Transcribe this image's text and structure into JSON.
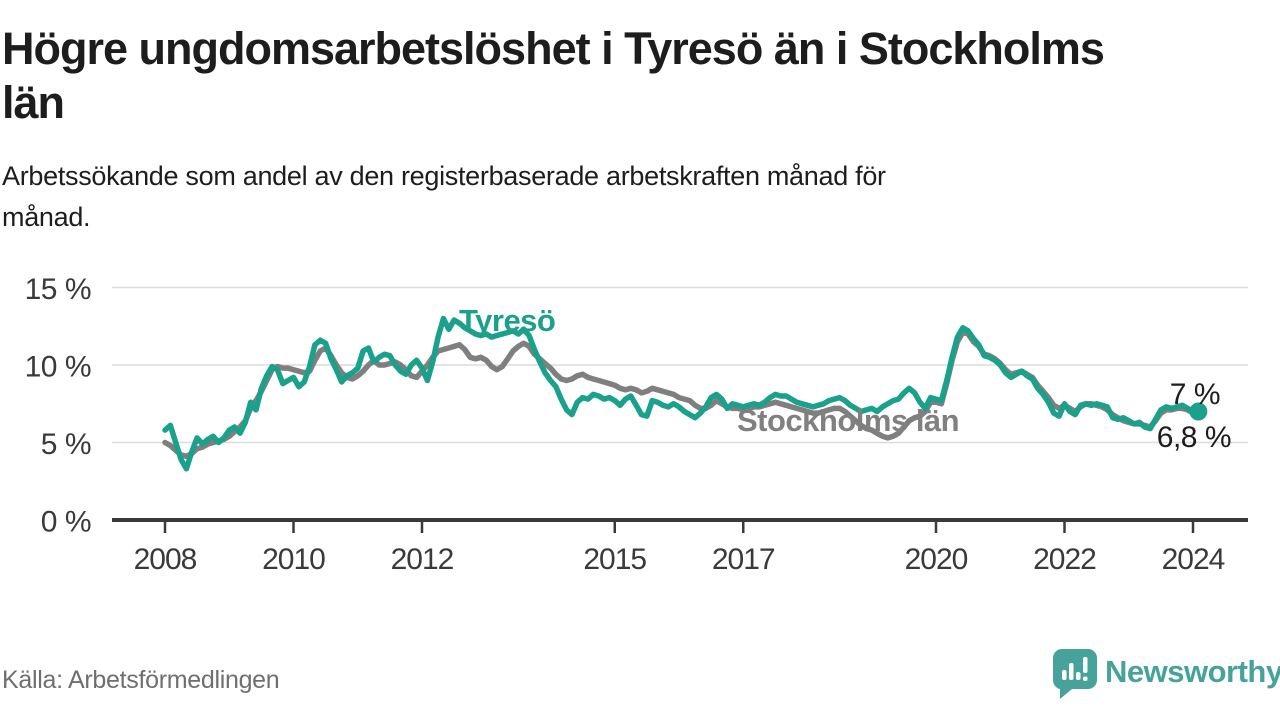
{
  "header": {
    "title_line1": "Högre ungdomsarbetslöshet i Tyresö än i Stockholms",
    "title_line2": "län",
    "subtitle_line1": "Arbetssökande som andel av den registerbaserade arbetskraften månad för",
    "subtitle_line2": "månad."
  },
  "footer": {
    "source": "Källa: Arbetsförmedlingen",
    "brand": "Newsworthy",
    "brand_color": "#48a29c",
    "logo_icon": "bar-chart-speech-bubble-icon"
  },
  "chart_data": {
    "type": "line",
    "title": "Högre ungdomsarbetslöshet i Tyresö än i Stockholms län",
    "subtitle": "Arbetssökande som andel av den registerbaserade arbetskraften månad för månad.",
    "unit": "%",
    "x_start": 2008.0,
    "points_per_year": 12,
    "x_ticks": {
      "values": [
        2008,
        2010,
        2012,
        2015,
        2017,
        2020,
        2022,
        2024
      ],
      "labels": [
        "2008",
        "2010",
        "2012",
        "2015",
        "2017",
        "2020",
        "2022",
        "2024"
      ]
    },
    "y_ticks": {
      "values": [
        0,
        5,
        10,
        15
      ],
      "labels": [
        "0 %",
        "5 %",
        "10 %",
        "15 %"
      ]
    },
    "ylim": [
      0,
      15.5
    ],
    "grid": "horizontal",
    "legend_position": "inline-labels",
    "axis_color": "#3a3a3a",
    "grid_color": "#dcdcdc",
    "series": [
      {
        "name": "Stockholms län",
        "color": "#7f7f7f",
        "label_color": "#808080",
        "end_label": "6,8 %",
        "end_dot": false,
        "values": [
          5.0,
          4.8,
          4.5,
          4.2,
          4.1,
          4.3,
          4.6,
          4.7,
          4.9,
          5.0,
          5.1,
          5.2,
          5.4,
          5.7,
          6.0,
          6.4,
          7.2,
          7.7,
          8.3,
          9.0,
          9.7,
          9.9,
          9.8,
          9.8,
          9.7,
          9.6,
          9.5,
          9.6,
          10.3,
          10.9,
          11.1,
          10.6,
          10.0,
          9.5,
          9.2,
          9.1,
          9.3,
          9.6,
          10.0,
          10.3,
          10.0,
          10.0,
          10.1,
          10.2,
          10.0,
          9.7,
          9.3,
          9.2,
          9.6,
          10.0,
          10.5,
          10.9,
          11.0,
          11.1,
          11.2,
          11.3,
          11.0,
          10.5,
          10.4,
          10.5,
          10.3,
          9.9,
          9.7,
          9.9,
          10.4,
          10.9,
          11.2,
          11.4,
          11.2,
          10.7,
          10.4,
          10.1,
          9.8,
          9.4,
          9.1,
          9.0,
          9.1,
          9.3,
          9.4,
          9.2,
          9.1,
          9.0,
          8.9,
          8.8,
          8.7,
          8.5,
          8.4,
          8.5,
          8.4,
          8.2,
          8.3,
          8.5,
          8.4,
          8.3,
          8.2,
          8.1,
          7.9,
          7.8,
          7.7,
          7.4,
          7.2,
          7.2,
          7.4,
          7.7,
          7.5,
          7.3,
          7.2,
          7.2,
          7.1,
          7.2,
          7.3,
          7.3,
          7.4,
          7.5,
          7.6,
          7.5,
          7.4,
          7.3,
          7.2,
          7.1,
          7.0,
          6.9,
          6.9,
          7.0,
          7.1,
          7.2,
          7.2,
          7.0,
          6.7,
          6.4,
          6.1,
          5.9,
          5.8,
          5.6,
          5.4,
          5.3,
          5.4,
          5.6,
          6.0,
          6.4,
          6.6,
          6.7,
          7.0,
          7.6,
          7.6,
          7.5,
          8.8,
          10.3,
          11.5,
          12.1,
          12.0,
          11.5,
          11.2,
          10.7,
          10.6,
          10.4,
          10.1,
          9.7,
          9.4,
          9.5,
          9.6,
          9.4,
          9.2,
          8.7,
          8.3,
          7.9,
          7.4,
          7.2,
          7.4,
          7.2,
          7.0,
          7.3,
          7.5,
          7.5,
          7.4,
          7.3,
          7.1,
          6.8,
          6.6,
          6.4,
          6.3,
          6.2,
          6.2,
          6.1,
          6.0,
          6.4,
          6.9,
          7.1,
          7.1,
          7.2,
          7.2,
          7.1,
          6.9,
          6.8
        ]
      },
      {
        "name": "Tyresö",
        "color": "#1aa18c",
        "label_color": "#1aa18c",
        "end_label": "7 %",
        "end_dot": true,
        "values": [
          5.8,
          6.1,
          5.0,
          3.9,
          3.3,
          4.4,
          5.3,
          4.9,
          5.2,
          5.4,
          5.0,
          5.3,
          5.8,
          6.0,
          5.6,
          6.3,
          7.6,
          7.1,
          8.5,
          9.3,
          9.9,
          9.7,
          8.8,
          9.0,
          9.2,
          8.6,
          8.9,
          9.9,
          11.3,
          11.6,
          11.4,
          10.4,
          9.7,
          8.9,
          9.3,
          9.5,
          9.8,
          10.9,
          11.1,
          10.2,
          10.5,
          10.7,
          10.6,
          10.0,
          9.6,
          9.4,
          10.0,
          10.3,
          9.8,
          9.0,
          10.2,
          11.8,
          13.0,
          12.3,
          12.9,
          12.7,
          12.4,
          12.2,
          12.0,
          11.9,
          12.0,
          11.8,
          11.9,
          12.0,
          12.1,
          12.2,
          12.0,
          12.3,
          11.9,
          11.0,
          10.2,
          9.5,
          9.0,
          8.6,
          7.8,
          7.1,
          6.8,
          7.6,
          7.9,
          7.8,
          8.1,
          8.0,
          7.8,
          7.9,
          7.7,
          7.4,
          7.8,
          8.0,
          7.4,
          6.8,
          6.7,
          7.7,
          7.6,
          7.4,
          7.3,
          7.5,
          7.3,
          7.0,
          6.8,
          6.6,
          6.9,
          7.3,
          7.9,
          8.1,
          7.8,
          7.2,
          7.5,
          7.4,
          7.3,
          7.4,
          7.5,
          7.4,
          7.6,
          7.9,
          8.1,
          8.0,
          8.0,
          7.8,
          7.6,
          7.5,
          7.4,
          7.3,
          7.4,
          7.5,
          7.7,
          7.8,
          7.9,
          7.7,
          7.4,
          7.2,
          7.0,
          7.1,
          7.2,
          7.0,
          7.3,
          7.5,
          7.7,
          7.8,
          8.2,
          8.5,
          8.2,
          7.6,
          7.2,
          7.9,
          7.8,
          7.7,
          9.0,
          10.5,
          11.8,
          12.4,
          12.2,
          11.7,
          11.3,
          10.6,
          10.5,
          10.3,
          10.0,
          9.5,
          9.2,
          9.4,
          9.6,
          9.3,
          9.1,
          8.5,
          8.1,
          7.6,
          6.9,
          6.7,
          7.5,
          7.0,
          6.8,
          7.4,
          7.5,
          7.4,
          7.5,
          7.4,
          7.3,
          6.6,
          6.5,
          6.6,
          6.4,
          6.2,
          6.3,
          6.0,
          5.9,
          6.5,
          7.1,
          7.3,
          7.2,
          7.3,
          7.4,
          7.2,
          7.0,
          7.0
        ]
      }
    ]
  }
}
